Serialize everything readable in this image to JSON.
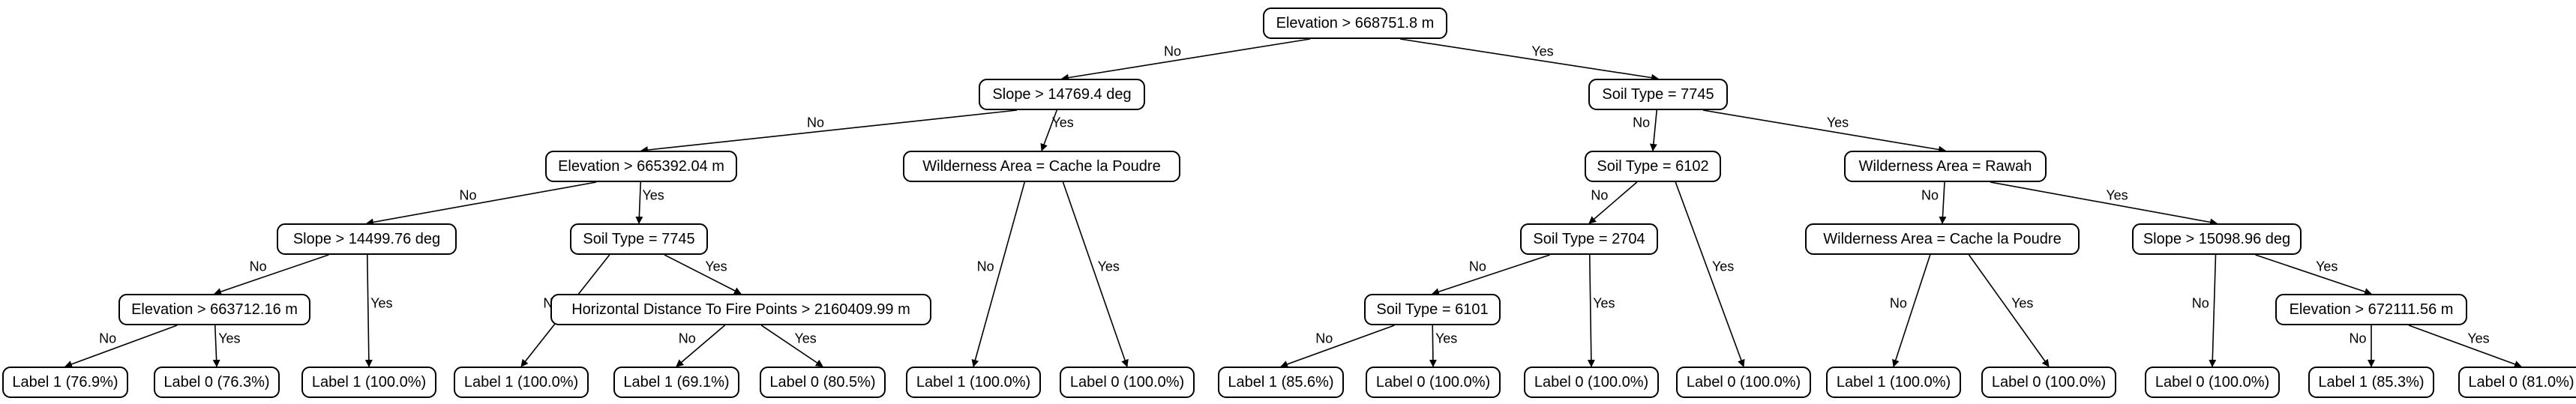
{
  "tree": {
    "root": {
      "label": "Elevation > 668751.8 m",
      "no": {
        "label": "Slope > 14769.4 deg",
        "no": {
          "label": "Elevation > 665392.04 m",
          "no": {
            "label": "Slope > 14499.76 deg",
            "no": {
              "label": "Elevation > 663712.16 m",
              "no": {
                "label": "Label 1 (76.9%)"
              },
              "yes": {
                "label": "Label 0 (76.3%)"
              }
            },
            "yes": {
              "label": "Label 1 (100.0%)"
            }
          },
          "yes": {
            "label": "Soil Type = 7745",
            "no": {
              "label": "Label 1 (100.0%)"
            },
            "yes": {
              "label": "Horizontal Distance To Fire Points > 2160409.99 m",
              "no": {
                "label": "Label 1 (69.1%)"
              },
              "yes": {
                "label": "Label 0 (80.5%)"
              }
            }
          }
        },
        "yes": {
          "label": "Wilderness Area = Cache la Poudre",
          "no": {
            "label": "Label 1 (100.0%)"
          },
          "yes": {
            "label": "Label 0 (100.0%)"
          }
        }
      },
      "yes": {
        "label": "Soil Type = 7745",
        "no": {
          "label": "Soil Type = 6102",
          "no": {
            "label": "Soil Type = 2704",
            "no": {
              "label": "Soil Type = 6101",
              "no": {
                "label": "Label 1 (85.6%)"
              },
              "yes": {
                "label": "Label 0 (100.0%)"
              }
            },
            "yes": {
              "label": "Label 0 (100.0%)"
            }
          },
          "yes": {
            "label": "Label 0 (100.0%)"
          }
        },
        "yes": {
          "label": "Wilderness Area = Rawah",
          "no": {
            "label": "Wilderness Area = Cache la Poudre",
            "no": {
              "label": "Label 1 (100.0%)"
            },
            "yes": {
              "label": "Label 0 (100.0%)"
            }
          },
          "yes": {
            "label": "Slope > 15098.96 deg",
            "no": {
              "label": "Label 0 (100.0%)"
            },
            "yes": {
              "label": "Elevation > 672111.56 m",
              "no": {
                "label": "Label 1 (85.3%)"
              },
              "yes": {
                "label": "Label 0 (81.0%)"
              }
            }
          }
        }
      }
    }
  },
  "edge_labels": {
    "no": "No",
    "yes": "Yes"
  }
}
